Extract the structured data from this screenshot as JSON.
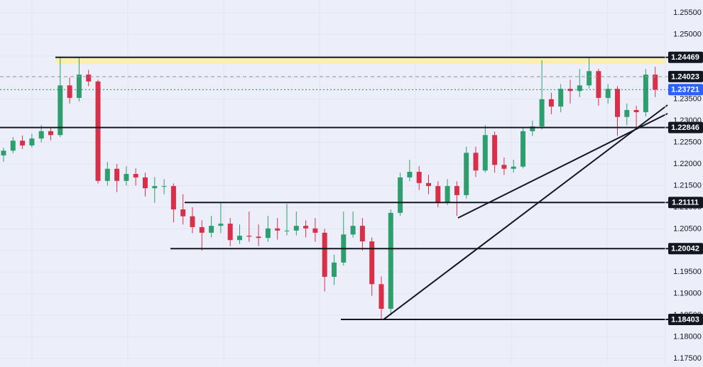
{
  "chart_data": {
    "type": "candlestick",
    "ylim": [
      1.17385,
      1.25796
    ],
    "yticks": [
      {
        "value": 1.175,
        "label": "1.17500"
      },
      {
        "value": 1.18,
        "label": "1.18000"
      },
      {
        "value": 1.185,
        "label": "1.18500"
      },
      {
        "value": 1.19,
        "label": "1.19000"
      },
      {
        "value": 1.195,
        "label": "1.19500"
      },
      {
        "value": 1.2,
        "label": "1.20000"
      },
      {
        "value": 1.205,
        "label": "1.20500"
      },
      {
        "value": 1.21,
        "label": "1.21000"
      },
      {
        "value": 1.215,
        "label": "1.21500"
      },
      {
        "value": 1.22,
        "label": "1.22000"
      },
      {
        "value": 1.225,
        "label": "1.22500"
      },
      {
        "value": 1.23,
        "label": "1.23000"
      },
      {
        "value": 1.235,
        "label": "1.23500"
      },
      {
        "value": 1.24,
        "label": "1.24000"
      },
      {
        "value": 1.245,
        "label": "1.24500"
      },
      {
        "value": 1.25,
        "label": "1.25000"
      },
      {
        "value": 1.255,
        "label": "1.25500"
      }
    ],
    "grid": true,
    "up_color": "#2e9e6e",
    "down_color": "#d9304a",
    "zone": {
      "from": 1.2432,
      "to": 1.24469,
      "color": "#fbefb0"
    },
    "levels": [
      {
        "value": 1.24469,
        "style": "solid",
        "color": "#131722",
        "box": "#131722"
      },
      {
        "value": 1.24023,
        "style": "dashed",
        "color": "#9598a1",
        "box": "#131722"
      },
      {
        "value": 1.23721,
        "style": "dotted",
        "color": "#2962ff",
        "box": "#2962ff"
      },
      {
        "value": 1.22846,
        "style": "solid",
        "color": "#131722",
        "box": "#131722"
      },
      {
        "value": 1.21111,
        "style": "solid",
        "color": "#131722",
        "box": "#131722"
      },
      {
        "value": 1.20042,
        "style": "solid",
        "color": "#131722",
        "box": "#131722"
      },
      {
        "value": 1.18403,
        "style": "solid",
        "color": "#131722",
        "box": "#131722"
      }
    ],
    "open": [
      1.222,
      1.2231,
      1.2254,
      1.2243,
      1.2259,
      1.2276,
      1.2267,
      1.2382,
      1.2353,
      1.2407,
      1.2391,
      1.2161,
      1.2189,
      1.2161,
      1.2177,
      1.2169,
      1.2144,
      1.2149,
      1.2149,
      1.2095,
      1.2079,
      1.2054,
      1.2041,
      1.2057,
      1.2062,
      1.2024,
      1.2034,
      1.2032,
      1.2029,
      1.2051,
      1.2046,
      1.2046,
      1.2057,
      1.2051,
      1.2041,
      1.1939,
      1.1972,
      1.2037,
      1.2057,
      1.2021,
      1.1922,
      1.1865,
      1.2087,
      1.2169,
      1.2182,
      1.2156,
      1.2149,
      1.2111,
      1.2149,
      1.2128,
      1.2226,
      1.2185,
      1.2267,
      1.2198,
      1.2189,
      1.2194,
      1.2276,
      1.2287,
      1.235,
      1.2333,
      1.2374,
      1.2369,
      1.2382,
      1.2415,
      1.2353,
      1.2374,
      1.2309,
      1.2325,
      1.232,
      1.2407
    ],
    "high": [
      1.2238,
      1.2262,
      1.2266,
      1.227,
      1.229,
      1.2285,
      1.2447,
      1.24,
      1.2447,
      1.2418,
      1.2395,
      1.2205,
      1.22,
      1.2195,
      1.219,
      1.218,
      1.217,
      1.2165,
      1.2155,
      1.213,
      1.21,
      1.207,
      1.208,
      1.211,
      1.2075,
      1.206,
      1.209,
      1.206,
      1.208,
      1.2075,
      1.2108,
      1.209,
      1.207,
      1.2075,
      1.205,
      1.199,
      1.209,
      1.209,
      1.2075,
      1.203,
      1.194,
      1.2095,
      1.218,
      1.221,
      1.2195,
      1.2175,
      1.216,
      1.2165,
      1.216,
      1.224,
      1.224,
      1.229,
      1.2275,
      1.2215,
      1.221,
      1.2285,
      1.23,
      1.244,
      1.2365,
      1.2385,
      1.2395,
      1.242,
      1.2447,
      1.242,
      1.2385,
      1.238,
      1.234,
      1.2335,
      1.242,
      1.2425
    ],
    "low": [
      1.2205,
      1.2225,
      1.2235,
      1.2238,
      1.225,
      1.2255,
      1.2262,
      1.234,
      1.2345,
      1.238,
      1.2155,
      1.215,
      1.2135,
      1.215,
      1.215,
      1.2125,
      1.211,
      1.213,
      1.2065,
      1.206,
      1.204,
      1.2,
      1.203,
      1.204,
      1.201,
      1.2015,
      1.202,
      1.201,
      1.202,
      1.2025,
      1.2035,
      1.2035,
      1.203,
      1.202,
      1.1905,
      1.192,
      1.1965,
      1.203,
      1.2,
      1.1895,
      1.184,
      1.185,
      1.208,
      1.216,
      1.214,
      1.213,
      1.21,
      1.2105,
      1.208,
      1.212,
      1.217,
      1.218,
      1.218,
      1.2175,
      1.218,
      1.219,
      1.2265,
      1.228,
      1.2315,
      1.232,
      1.234,
      1.2355,
      1.2375,
      1.2335,
      1.234,
      1.2265,
      1.229,
      1.2285,
      1.231,
      1.2355
    ],
    "close": [
      1.2231,
      1.2254,
      1.2243,
      1.2259,
      1.2276,
      1.2267,
      1.2382,
      1.2353,
      1.2407,
      1.2391,
      1.2161,
      1.2189,
      1.2161,
      1.2177,
      1.2169,
      1.2144,
      1.2149,
      1.2149,
      1.2095,
      1.2079,
      1.2054,
      1.2041,
      1.2057,
      1.2062,
      1.2024,
      1.2034,
      1.2032,
      1.2029,
      1.2051,
      1.2046,
      1.2046,
      1.2057,
      1.2051,
      1.2041,
      1.1939,
      1.1972,
      1.2037,
      1.2057,
      1.2021,
      1.1922,
      1.1865,
      1.2087,
      1.2169,
      1.2182,
      1.2156,
      1.2149,
      1.2111,
      1.2149,
      1.2128,
      1.2226,
      1.2185,
      1.2267,
      1.2198,
      1.2189,
      1.2194,
      1.2276,
      1.2287,
      1.235,
      1.2333,
      1.2374,
      1.2369,
      1.2382,
      1.2415,
      1.2353,
      1.2374,
      1.2309,
      1.2325,
      1.232,
      1.2407,
      1.2372
    ]
  }
}
